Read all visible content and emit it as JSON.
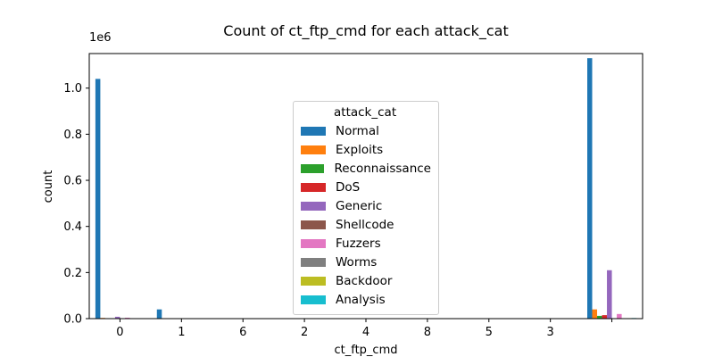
{
  "chart_data": {
    "type": "bar",
    "title": "Count of ct_ftp_cmd for each attack_cat",
    "xlabel": "ct_ftp_cmd",
    "ylabel": "count",
    "y_scale_label": "1e6",
    "categories": [
      "0",
      "1",
      "6",
      "2",
      "4",
      "8",
      "5",
      "3",
      ""
    ],
    "ylim": [
      0,
      1150000
    ],
    "yticks": [
      {
        "value": 0,
        "label": "0.0"
      },
      {
        "value": 200000,
        "label": "0.2"
      },
      {
        "value": 400000,
        "label": "0.4"
      },
      {
        "value": 600000,
        "label": "0.6"
      },
      {
        "value": 800000,
        "label": "0.8"
      },
      {
        "value": 1000000,
        "label": "1.0"
      }
    ],
    "legend": {
      "title": "attack_cat",
      "position": "center"
    },
    "grid": false,
    "series": [
      {
        "name": "Normal",
        "color": "#1f77b4",
        "values": [
          1040000,
          40000,
          100,
          50,
          0,
          0,
          0,
          0,
          1130000
        ]
      },
      {
        "name": "Exploits",
        "color": "#ff7f0e",
        "values": [
          3000,
          0,
          0,
          0,
          0,
          0,
          0,
          0,
          40000
        ]
      },
      {
        "name": "Reconnaissance",
        "color": "#2ca02c",
        "values": [
          500,
          0,
          0,
          0,
          0,
          0,
          0,
          0,
          12000
        ]
      },
      {
        "name": "DoS",
        "color": "#d62728",
        "values": [
          1000,
          0,
          0,
          0,
          0,
          0,
          0,
          0,
          15000
        ]
      },
      {
        "name": "Generic",
        "color": "#9467bd",
        "values": [
          8000,
          0,
          0,
          0,
          0,
          0,
          0,
          0,
          210000
        ]
      },
      {
        "name": "Shellcode",
        "color": "#8c564b",
        "values": [
          500,
          0,
          0,
          0,
          0,
          0,
          0,
          0,
          1500
        ]
      },
      {
        "name": "Fuzzers",
        "color": "#e377c2",
        "values": [
          4000,
          0,
          0,
          0,
          0,
          0,
          0,
          0,
          20000
        ]
      },
      {
        "name": "Worms",
        "color": "#7f7f7f",
        "values": [
          0,
          0,
          0,
          0,
          0,
          0,
          0,
          0,
          200
        ]
      },
      {
        "name": "Backdoor",
        "color": "#bcbd22",
        "values": [
          300,
          0,
          0,
          0,
          0,
          0,
          0,
          0,
          2000
        ]
      },
      {
        "name": "Analysis",
        "color": "#17becf",
        "values": [
          300,
          0,
          0,
          0,
          0,
          0,
          0,
          0,
          2500
        ]
      }
    ]
  }
}
